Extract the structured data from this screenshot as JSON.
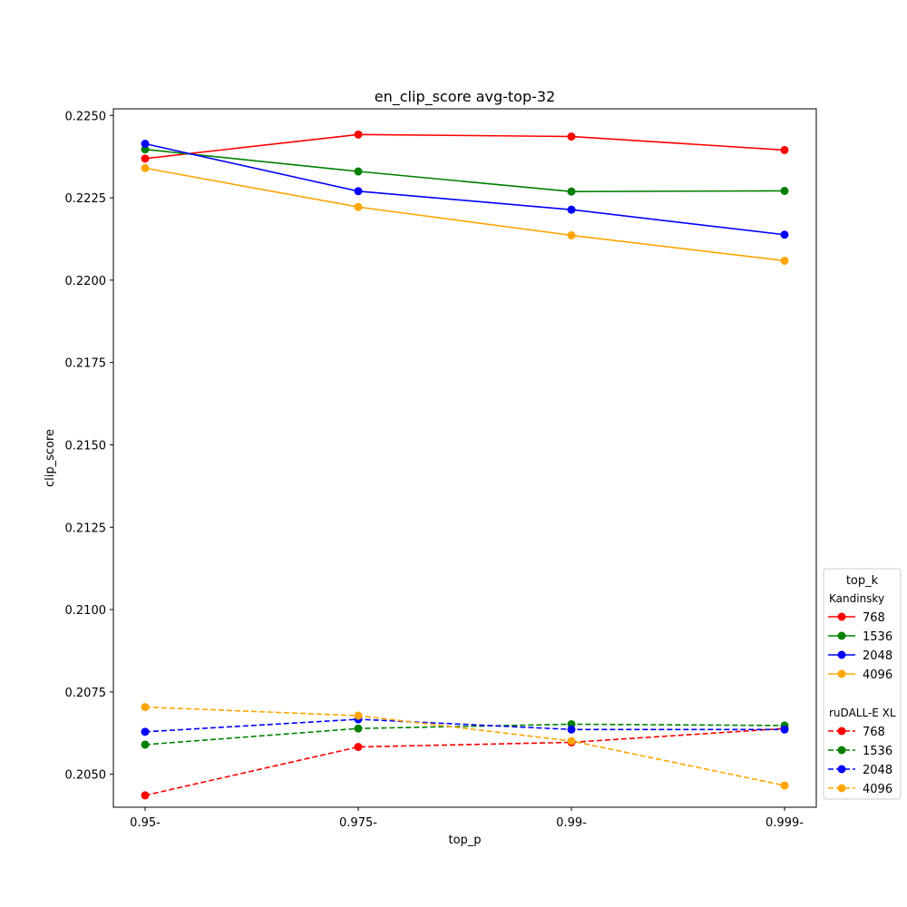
{
  "chart_data": {
    "type": "line",
    "title": "en_clip_score avg-top-32",
    "xlabel": "top_p",
    "ylabel": "clip_score",
    "categories": [
      "0.95-",
      "0.975-",
      "0.99-",
      "0.999-"
    ],
    "ylim": [
      0.204,
      0.2252
    ],
    "yticks": [
      "0.2050",
      "0.2075",
      "0.2100",
      "0.2125",
      "0.2150",
      "0.2175",
      "0.2200",
      "0.2225",
      "0.2250"
    ],
    "ytick_values": [
      0.205,
      0.2075,
      0.21,
      0.2125,
      0.215,
      0.2175,
      0.22,
      0.2225,
      0.225
    ],
    "grid": false,
    "legend": {
      "title": "top_k",
      "placement": "lower-right-outside",
      "groups": [
        {
          "label": "Kandinsky",
          "style": "solid"
        },
        {
          "label": "ruDALL-E XL",
          "style": "dashed"
        }
      ]
    },
    "series": [
      {
        "name": "768",
        "group": "Kandinsky",
        "color": "#ff0000",
        "style": "solid",
        "values": [
          0.22369,
          0.22442,
          0.22436,
          0.22395
        ]
      },
      {
        "name": "1536",
        "group": "Kandinsky",
        "color": "#008000",
        "style": "solid",
        "values": [
          0.22397,
          0.2233,
          0.22269,
          0.22271
        ]
      },
      {
        "name": "2048",
        "group": "Kandinsky",
        "color": "#0000ff",
        "style": "solid",
        "values": [
          0.22414,
          0.2227,
          0.22214,
          0.22138
        ]
      },
      {
        "name": "4096",
        "group": "Kandinsky",
        "color": "#ffa500",
        "style": "solid",
        "values": [
          0.2234,
          0.22222,
          0.22136,
          0.22059
        ]
      },
      {
        "name": "768",
        "group": "ruDALL-E XL",
        "color": "#ff0000",
        "style": "dashed",
        "values": [
          0.20436,
          0.20583,
          0.20597,
          0.20639
        ]
      },
      {
        "name": "1536",
        "group": "ruDALL-E XL",
        "color": "#008000",
        "style": "dashed",
        "values": [
          0.2059,
          0.20639,
          0.20652,
          0.20648
        ]
      },
      {
        "name": "2048",
        "group": "ruDALL-E XL",
        "color": "#0000ff",
        "style": "dashed",
        "values": [
          0.20629,
          0.20667,
          0.20636,
          0.20636
        ]
      },
      {
        "name": "4096",
        "group": "ruDALL-E XL",
        "color": "#ffa500",
        "style": "dashed",
        "values": [
          0.20704,
          0.20678,
          0.20601,
          0.20466
        ]
      }
    ]
  }
}
